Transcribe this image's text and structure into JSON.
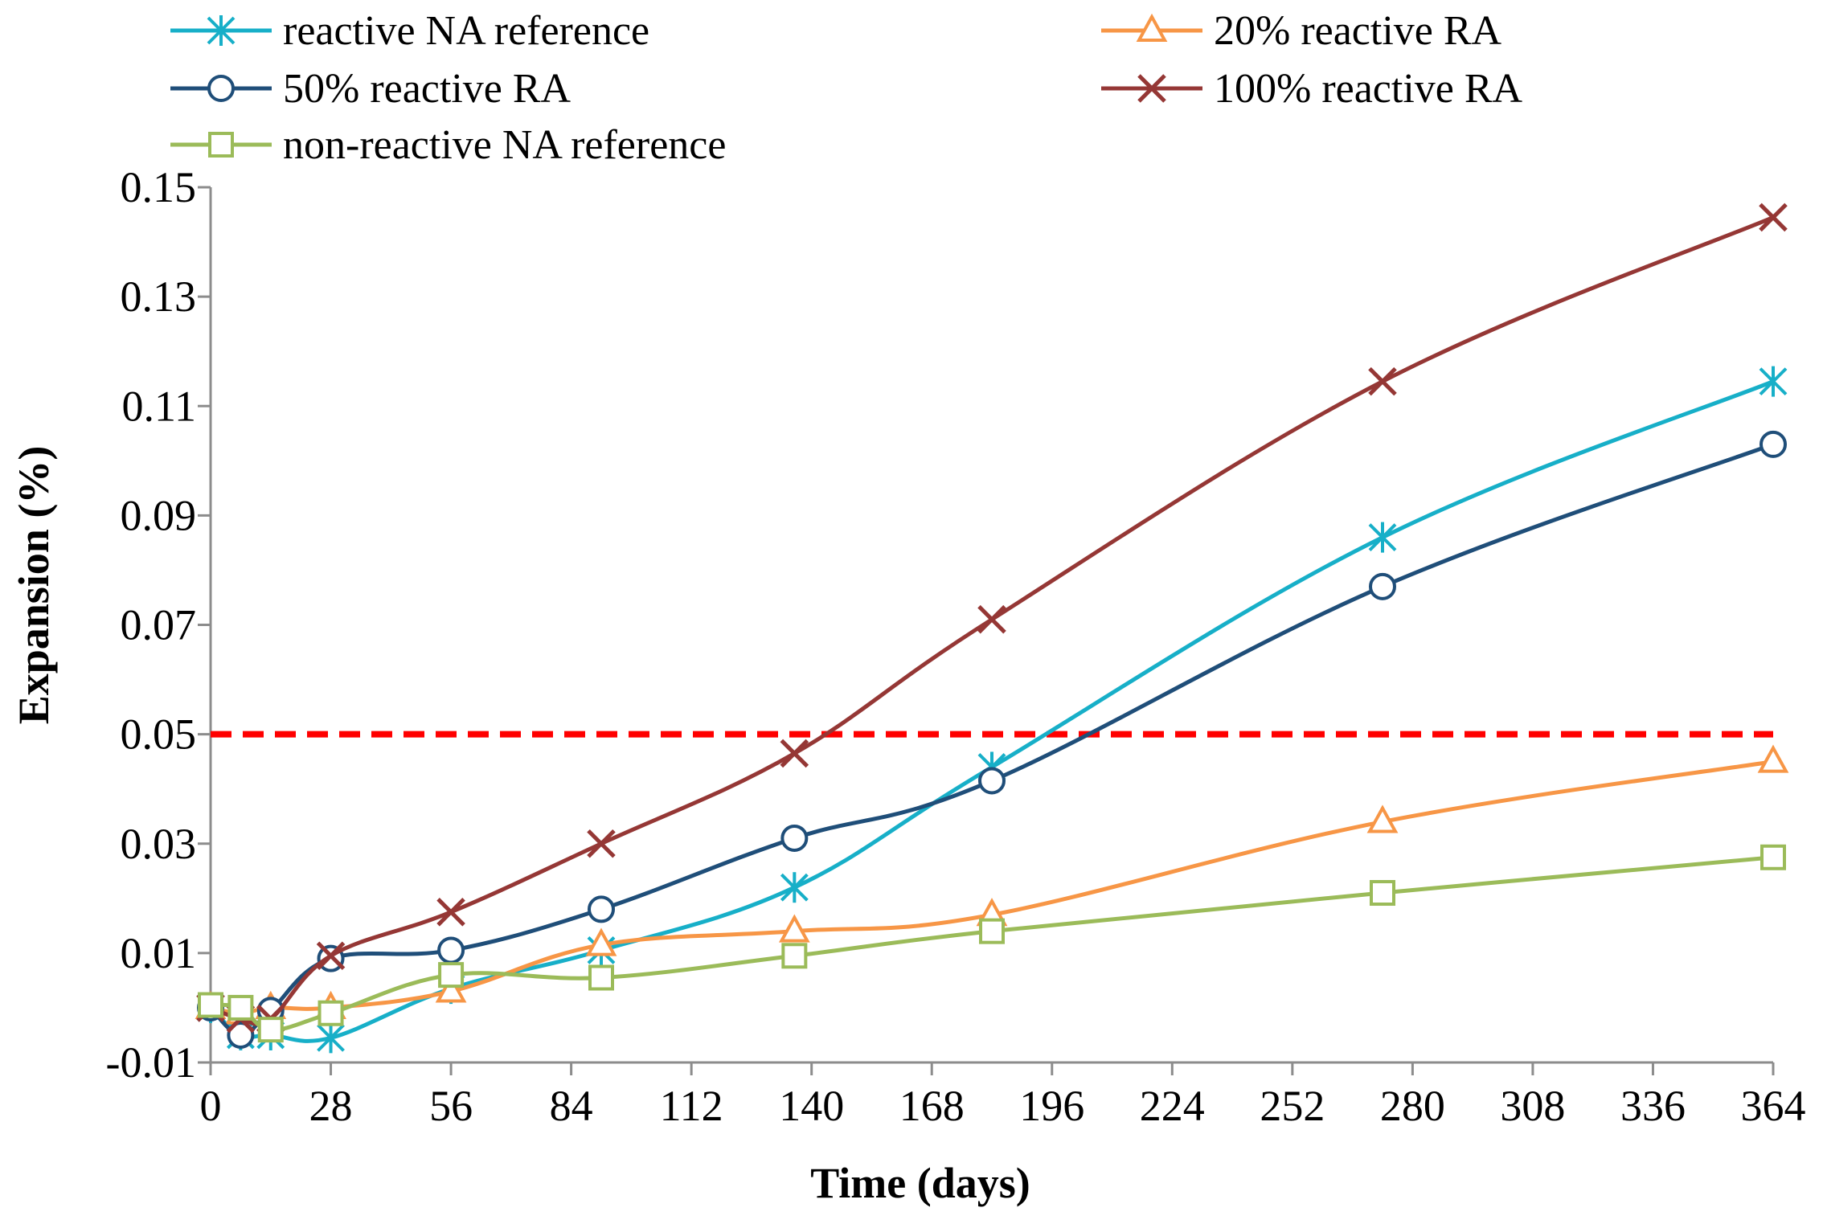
{
  "chart_data": {
    "type": "line",
    "title": "",
    "xlabel": "Time  (days)",
    "ylabel": "Expansion  (%)",
    "xlim": [
      0,
      364
    ],
    "ylim": [
      -0.01,
      0.15
    ],
    "x_ticks": [
      0,
      28,
      56,
      84,
      112,
      140,
      168,
      196,
      224,
      252,
      280,
      308,
      336,
      364
    ],
    "x_tick_labels": [
      "0",
      "28",
      "56",
      "84",
      "112",
      "140",
      "168",
      "196",
      "224",
      "252",
      "280",
      "308",
      "336",
      "364"
    ],
    "y_ticks": [
      -0.01,
      0.01,
      0.03,
      0.05,
      0.07,
      0.09,
      0.11,
      0.13,
      0.15
    ],
    "y_tick_labels": [
      "-0.01",
      "0.01",
      "0.03",
      "0.05",
      "0.07",
      "0.09",
      "0.11",
      "0.13",
      "0.15"
    ],
    "grid": false,
    "legend_position": "top",
    "threshold": {
      "value": 0.05,
      "color": "#ff0000",
      "style": "dashed"
    },
    "series": [
      {
        "name": "reactive NA reference",
        "color": "#17afc8",
        "marker": "asterisk",
        "x": [
          0,
          7,
          14,
          28,
          56,
          91,
          136,
          182,
          273,
          364
        ],
        "y": [
          0.0,
          -0.005,
          -0.005,
          -0.0055,
          0.0035,
          0.0105,
          0.022,
          0.044,
          0.086,
          0.1145
        ]
      },
      {
        "name": "20% reactive RA",
        "color": "#f79646",
        "marker": "triangle",
        "x": [
          0,
          7,
          14,
          28,
          56,
          91,
          136,
          182,
          273,
          364
        ],
        "y": [
          0.0,
          -0.001,
          0.0,
          0.0,
          0.003,
          0.0115,
          0.014,
          0.017,
          0.034,
          0.045
        ]
      },
      {
        "name": "50% reactive RA",
        "color": "#1f4e79",
        "marker": "circle",
        "x": [
          0,
          7,
          14,
          28,
          56,
          91,
          136,
          182,
          273,
          364
        ],
        "y": [
          0.0,
          -0.005,
          -0.0005,
          0.009,
          0.0105,
          0.018,
          0.031,
          0.0415,
          0.077,
          0.103
        ]
      },
      {
        "name": "100% reactive RA",
        "color": "#953735",
        "marker": "x",
        "x": [
          0,
          7,
          14,
          28,
          56,
          91,
          136,
          182,
          273,
          364
        ],
        "y": [
          0.0,
          -0.002,
          -0.002,
          0.0095,
          0.0175,
          0.03,
          0.0465,
          0.071,
          0.1145,
          0.1445
        ]
      },
      {
        "name": "non-reactive NA reference",
        "color": "#9bbb59",
        "marker": "square",
        "x": [
          0,
          7,
          14,
          28,
          56,
          91,
          136,
          182,
          273,
          364
        ],
        "y": [
          0.0005,
          0.0,
          -0.004,
          -0.001,
          0.006,
          0.0055,
          0.0095,
          0.014,
          0.021,
          0.0275
        ]
      }
    ]
  }
}
